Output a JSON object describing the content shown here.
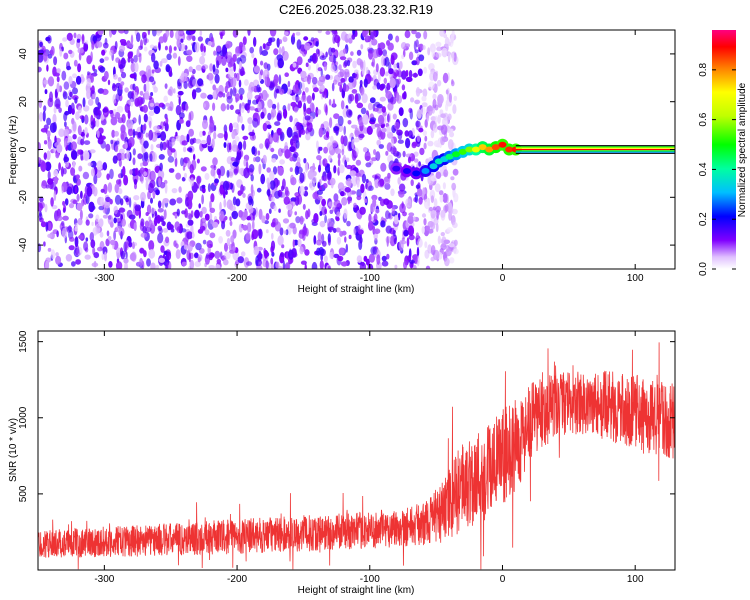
{
  "title": "C2E6.2025.038.23.32.R19",
  "chart_data": [
    {
      "type": "heatmap",
      "xlabel": "Height of straight line (km)",
      "ylabel": "Frequency (Hz)",
      "xlim": [
        -350,
        130
      ],
      "ylim": [
        -50,
        50
      ],
      "xticks": [
        -300,
        -200,
        -100,
        0,
        100
      ],
      "yticks": [
        -40,
        -20,
        0,
        20,
        40
      ],
      "colorbar": {
        "label": "Normalized spectral amplitude",
        "range": [
          0,
          0.96
        ],
        "ticks": [
          0.0,
          0.2,
          0.4,
          0.6,
          0.8
        ]
      },
      "noise_region_x": [
        -350,
        -60
      ],
      "signal_trace": [
        {
          "x": -80,
          "f": -8,
          "amp": 0.18
        },
        {
          "x": -72,
          "f": -9,
          "amp": 0.2
        },
        {
          "x": -65,
          "f": -10,
          "amp": 0.22
        },
        {
          "x": -58,
          "f": -9,
          "amp": 0.3
        },
        {
          "x": -52,
          "f": -7,
          "amp": 0.35
        },
        {
          "x": -48,
          "f": -5,
          "amp": 0.4
        },
        {
          "x": -44,
          "f": -4,
          "amp": 0.35
        },
        {
          "x": -40,
          "f": -3,
          "amp": 0.45
        },
        {
          "x": -35,
          "f": -2,
          "amp": 0.5
        },
        {
          "x": -30,
          "f": -1,
          "amp": 0.55
        },
        {
          "x": -25,
          "f": 0,
          "amp": 0.6
        },
        {
          "x": -20,
          "f": 0,
          "amp": 0.7
        },
        {
          "x": -15,
          "f": 1,
          "amp": 0.78
        },
        {
          "x": -10,
          "f": 0,
          "amp": 0.82
        },
        {
          "x": -5,
          "f": 1,
          "amp": 0.88
        },
        {
          "x": 0,
          "f": 2,
          "amp": 0.92
        },
        {
          "x": 5,
          "f": 0,
          "amp": 0.9
        },
        {
          "x": 10,
          "f": 0,
          "amp": 0.92
        }
      ],
      "constant_line": {
        "x_from": 10,
        "x_to": 130,
        "f": 0,
        "amp": 0.95
      }
    },
    {
      "type": "line",
      "xlabel": "Height of straight line (km)",
      "ylabel": "SNR (10 * v/v)",
      "xlim": [
        -350,
        130
      ],
      "ylim": [
        0,
        1570
      ],
      "xticks": [
        -300,
        -200,
        -100,
        0,
        100
      ],
      "yticks": [
        500,
        1000,
        1500
      ],
      "color": "#ee3333",
      "envelope": [
        {
          "x": -350,
          "mean": 170,
          "spread": 90
        },
        {
          "x": -250,
          "mean": 200,
          "spread": 110
        },
        {
          "x": -150,
          "mean": 240,
          "spread": 120
        },
        {
          "x": -100,
          "mean": 260,
          "spread": 120
        },
        {
          "x": -60,
          "mean": 300,
          "spread": 140
        },
        {
          "x": -45,
          "mean": 380,
          "spread": 200
        },
        {
          "x": -30,
          "mean": 550,
          "spread": 300
        },
        {
          "x": -10,
          "mean": 660,
          "spread": 330
        },
        {
          "x": 10,
          "mean": 820,
          "spread": 300
        },
        {
          "x": 30,
          "mean": 1050,
          "spread": 250
        },
        {
          "x": 50,
          "mean": 1100,
          "spread": 200
        },
        {
          "x": 80,
          "mean": 1080,
          "spread": 230
        },
        {
          "x": 110,
          "mean": 1000,
          "spread": 250
        },
        {
          "x": 130,
          "mean": 980,
          "spread": 250
        }
      ]
    }
  ]
}
